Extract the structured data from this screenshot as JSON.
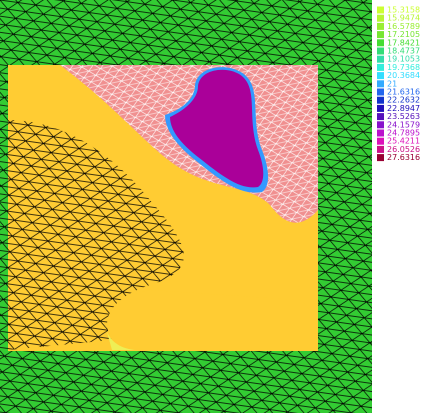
{
  "legend": {
    "entries": [
      {
        "label": "15.3158",
        "color": "#ccff33"
      },
      {
        "label": "15.9474",
        "color": "#b8f533"
      },
      {
        "label": "16.5789",
        "color": "#99ee33"
      },
      {
        "label": "17.2105",
        "color": "#77e633"
      },
      {
        "label": "17.8421",
        "color": "#44dd33"
      },
      {
        "label": "18.4737",
        "color": "#33dd77"
      },
      {
        "label": "19.1053",
        "color": "#33ddaa"
      },
      {
        "label": "19.7368",
        "color": "#33eedd"
      },
      {
        "label": "20.3684",
        "color": "#33ddff"
      },
      {
        "label": "21",
        "color": "#33aaff"
      },
      {
        "label": "21.6316",
        "color": "#2266ee"
      },
      {
        "label": "22.2632",
        "color": "#1133cc"
      },
      {
        "label": "22.8947",
        "color": "#2211bb"
      },
      {
        "label": "23.5263",
        "color": "#5511bb"
      },
      {
        "label": "24.1579",
        "color": "#8811cc"
      },
      {
        "label": "24.7895",
        "color": "#bb11cc"
      },
      {
        "label": "25.4211",
        "color": "#dd11bb"
      },
      {
        "label": "26.0526",
        "color": "#cc1188"
      },
      {
        "label": "27.6316",
        "color": "#990033"
      }
    ]
  }
}
